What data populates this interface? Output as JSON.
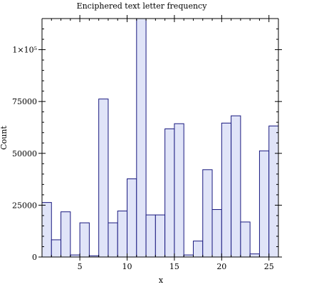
{
  "chart_data": {
    "type": "bar",
    "title": "Enciphered text letter frequency",
    "xlabel": "x",
    "ylabel": "Count",
    "x": [
      1,
      2,
      3,
      4,
      5,
      6,
      7,
      8,
      9,
      10,
      11,
      12,
      13,
      14,
      15,
      16,
      17,
      18,
      19,
      20,
      21,
      22,
      23,
      24,
      25,
      26
    ],
    "values": [
      26300,
      8300,
      21800,
      1000,
      16500,
      600,
      76200,
      16500,
      22200,
      37700,
      115000,
      20300,
      20300,
      61800,
      64300,
      1000,
      7700,
      42100,
      22900,
      64600,
      68100,
      16900,
      1500,
      51200,
      63200,
      0
    ],
    "xlim": [
      1,
      26
    ],
    "ylim": [
      0,
      115000
    ],
    "xticks": [
      5,
      10,
      15,
      20,
      25
    ],
    "xtick_labels": [
      "5",
      "10",
      "15",
      "20",
      "25"
    ],
    "yticks": [
      0,
      25000,
      50000,
      75000,
      100000
    ],
    "ytick_labels": [
      "0",
      "25000",
      "50000",
      "75000",
      "1×10⁵"
    ],
    "grid": false
  }
}
